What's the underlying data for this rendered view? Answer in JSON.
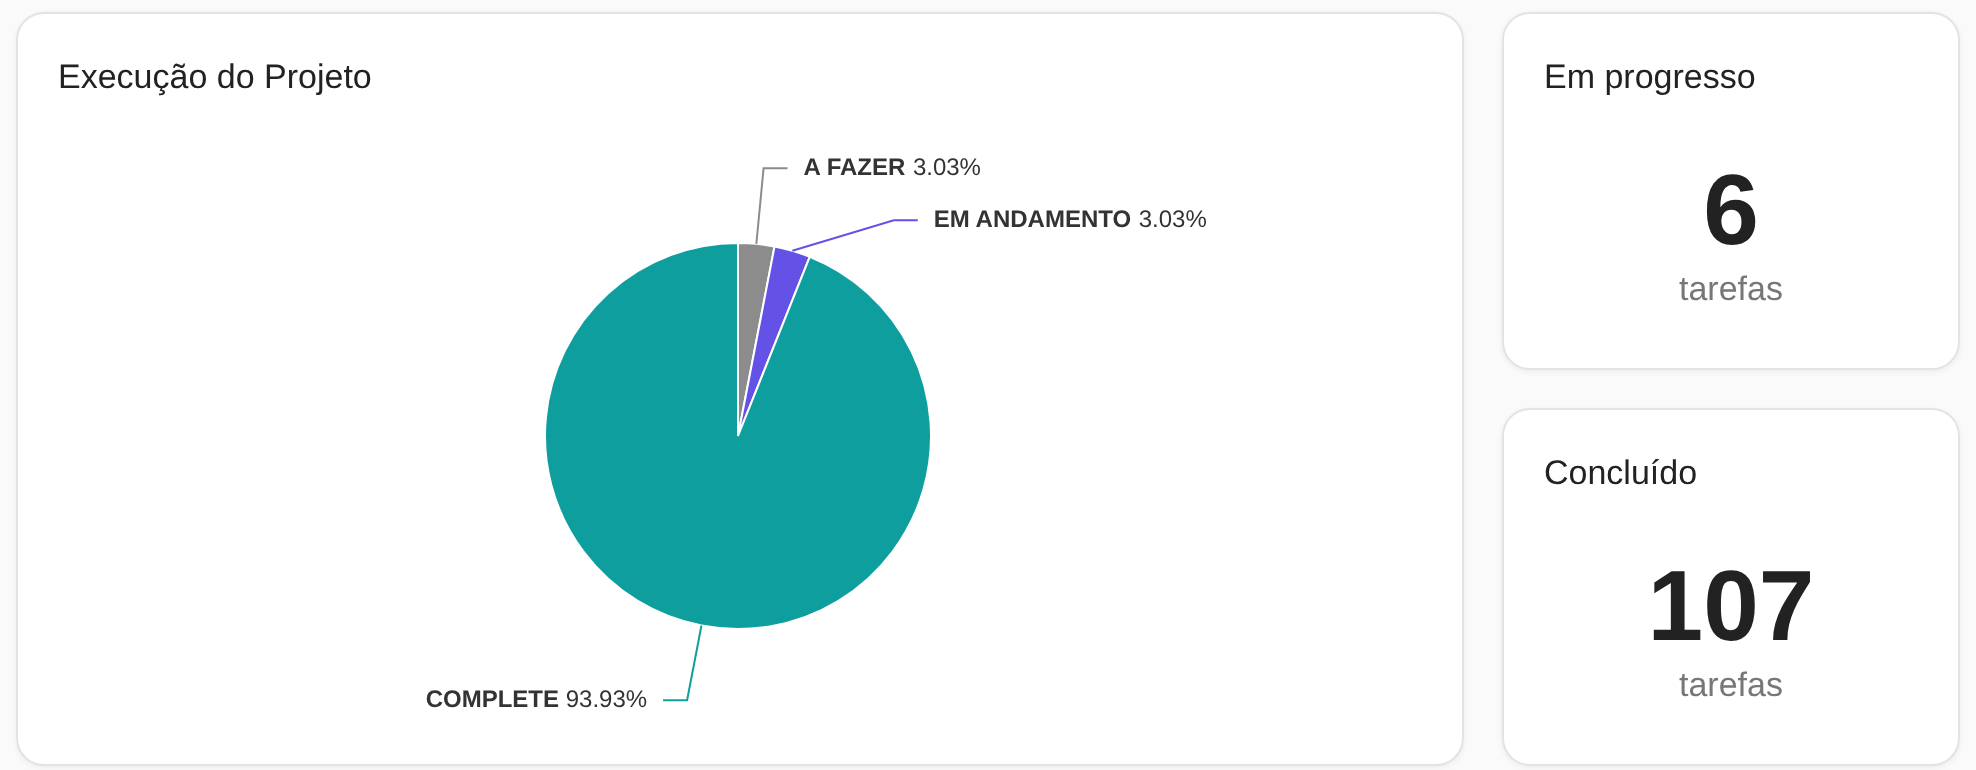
{
  "chart_data": [
    {
      "type": "pie",
      "title": "Execução do Projeto",
      "categories": [
        "A FAZER",
        "EM ANDAMENTO",
        "COMPLETE"
      ],
      "values": [
        3.03,
        3.03,
        93.93
      ],
      "colors": [
        "#8c8c8c",
        "#6451e6",
        "#0f9e9e"
      ],
      "value_labels": [
        "3.03%",
        "3.03%",
        "93.93%"
      ],
      "legend": false
    },
    {
      "type": "other",
      "title": "Em progresso",
      "annotations": [
        "6",
        "tarefas"
      ]
    },
    {
      "type": "other",
      "title": "Concluído",
      "annotations": [
        "107",
        "tarefas"
      ]
    }
  ]
}
